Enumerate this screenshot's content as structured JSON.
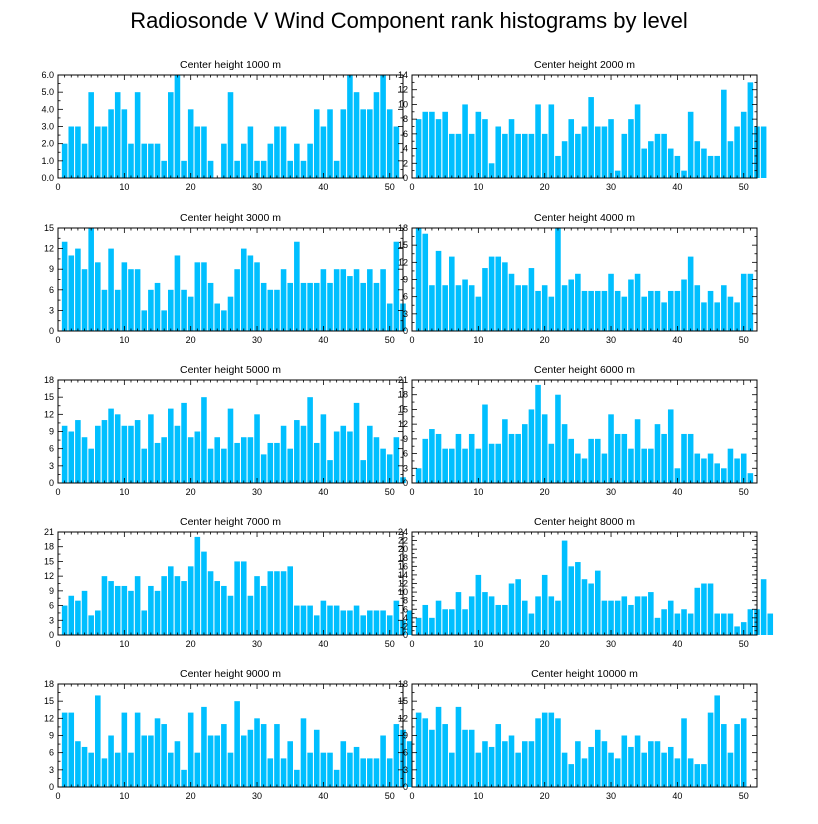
{
  "title": "Radiosonde V Wind Component rank histograms by level",
  "bar_color": "#00BFFF",
  "chart_data": [
    {
      "type": "bar",
      "title": "Center height 1000 m",
      "x_start": 1,
      "xlim": [
        0,
        52
      ],
      "ylim": [
        0,
        6
      ],
      "xticks": [
        0,
        10,
        20,
        30,
        40,
        50
      ],
      "yticks": [
        "0.0",
        "1.0",
        "2.0",
        "3.0",
        "4.0",
        "5.0",
        "6.0"
      ],
      "values": [
        2,
        3,
        3,
        2,
        5,
        3,
        3,
        4,
        5,
        4,
        2,
        5,
        2,
        2,
        2,
        1,
        5,
        6,
        1,
        4,
        3,
        3,
        1,
        0,
        2,
        5,
        1,
        2,
        3,
        1,
        1,
        2,
        3,
        3,
        1,
        2,
        1,
        2,
        4,
        3,
        4,
        1,
        4,
        6,
        5,
        4,
        4,
        5,
        6,
        4,
        3
      ]
    },
    {
      "type": "bar",
      "title": "Center height 2000 m",
      "x_start": 1,
      "xlim": [
        0,
        52
      ],
      "ylim": [
        0,
        14
      ],
      "xticks": [
        0,
        10,
        20,
        30,
        40,
        50
      ],
      "yticks": [
        "0",
        "2",
        "4",
        "6",
        "8",
        "10",
        "12",
        "14"
      ],
      "values": [
        8,
        9,
        9,
        8,
        9,
        6,
        6,
        10,
        6,
        9,
        8,
        2,
        7,
        6,
        8,
        6,
        6,
        6,
        10,
        6,
        10,
        3,
        5,
        8,
        6,
        7,
        11,
        7,
        7,
        8,
        1,
        6,
        8,
        10,
        4,
        5,
        6,
        6,
        4,
        3,
        1,
        9,
        5,
        4,
        3,
        3,
        12,
        5,
        7,
        9,
        13,
        7,
        7
      ]
    },
    {
      "type": "bar",
      "title": "Center height 3000 m",
      "x_start": 1,
      "xlim": [
        0,
        52
      ],
      "ylim": [
        0,
        15
      ],
      "xticks": [
        0,
        10,
        20,
        30,
        40,
        50
      ],
      "yticks": [
        "0",
        "3",
        "6",
        "9",
        "12",
        "15"
      ],
      "values": [
        13,
        11,
        12,
        9,
        15,
        10,
        6,
        12,
        6,
        10,
        9,
        9,
        3,
        6,
        7,
        3,
        6,
        11,
        6,
        5,
        10,
        10,
        7,
        4,
        3,
        5,
        9,
        12,
        11,
        10,
        7,
        6,
        6,
        9,
        7,
        13,
        7,
        7,
        7,
        9,
        7,
        9,
        9,
        8,
        9,
        7,
        9,
        7,
        9,
        4,
        13,
        4
      ]
    },
    {
      "type": "bar",
      "title": "Center height 4000 m",
      "x_start": 1,
      "xlim": [
        0,
        52
      ],
      "ylim": [
        0,
        18
      ],
      "xticks": [
        0,
        10,
        20,
        30,
        40,
        50
      ],
      "yticks": [
        "0",
        "3",
        "6",
        "9",
        "12",
        "15",
        "18"
      ],
      "values": [
        18,
        17,
        8,
        14,
        8,
        13,
        8,
        9,
        8,
        6,
        11,
        13,
        13,
        12,
        10,
        8,
        8,
        11,
        7,
        8,
        6,
        18,
        8,
        9,
        10,
        7,
        7,
        7,
        7,
        10,
        7,
        6,
        9,
        10,
        6,
        7,
        7,
        5,
        7,
        7,
        9,
        13,
        8,
        5,
        7,
        5,
        8,
        6,
        5,
        10,
        10
      ]
    },
    {
      "type": "bar",
      "title": "Center height 5000 m",
      "x_start": 1,
      "xlim": [
        0,
        52
      ],
      "ylim": [
        0,
        18
      ],
      "xticks": [
        0,
        10,
        20,
        30,
        40,
        50
      ],
      "yticks": [
        "0",
        "3",
        "6",
        "9",
        "12",
        "15",
        "18"
      ],
      "values": [
        10,
        9,
        11,
        8,
        6,
        10,
        11,
        13,
        12,
        10,
        10,
        11,
        6,
        12,
        7,
        8,
        13,
        10,
        14,
        8,
        9,
        15,
        6,
        8,
        6,
        13,
        7,
        8,
        8,
        12,
        5,
        7,
        7,
        10,
        6,
        11,
        10,
        15,
        7,
        12,
        4,
        9,
        10,
        9,
        14,
        4,
        10,
        8,
        6,
        5,
        8,
        1
      ]
    },
    {
      "type": "bar",
      "title": "Center height 6000 m",
      "x_start": 1,
      "xlim": [
        0,
        52
      ],
      "ylim": [
        0,
        21
      ],
      "xticks": [
        0,
        10,
        20,
        30,
        40,
        50
      ],
      "yticks": [
        "0",
        "3",
        "6",
        "9",
        "12",
        "15",
        "18",
        "21"
      ],
      "values": [
        3,
        9,
        11,
        10,
        7,
        7,
        10,
        7,
        10,
        7,
        16,
        8,
        8,
        13,
        10,
        10,
        12,
        15,
        20,
        14,
        8,
        18,
        12,
        9,
        6,
        5,
        9,
        9,
        6,
        14,
        10,
        10,
        7,
        13,
        7,
        7,
        12,
        10,
        15,
        3,
        10,
        10,
        6,
        5,
        6,
        4,
        3,
        7,
        5,
        6,
        2
      ]
    },
    {
      "type": "bar",
      "title": "Center height 7000 m",
      "x_start": 1,
      "xlim": [
        0,
        52
      ],
      "ylim": [
        0,
        21
      ],
      "xticks": [
        0,
        10,
        20,
        30,
        40,
        50
      ],
      "yticks": [
        "0",
        "3",
        "6",
        "9",
        "12",
        "15",
        "18",
        "21"
      ],
      "values": [
        6,
        8,
        7,
        9,
        4,
        5,
        12,
        11,
        10,
        10,
        9,
        12,
        5,
        10,
        9,
        12,
        14,
        12,
        11,
        14,
        20,
        17,
        13,
        11,
        10,
        8,
        15,
        15,
        8,
        12,
        10,
        13,
        13,
        13,
        14,
        6,
        6,
        6,
        4,
        7,
        6,
        6,
        5,
        5,
        6,
        4,
        5,
        5,
        5,
        4,
        7,
        3,
        5
      ]
    },
    {
      "type": "bar",
      "title": "Center height 8000 m",
      "x_start": 1,
      "xlim": [
        0,
        52
      ],
      "ylim": [
        0,
        24
      ],
      "xticks": [
        0,
        10,
        20,
        30,
        40,
        50
      ],
      "yticks": [
        "0",
        "2",
        "4",
        "6",
        "8",
        "10",
        "12",
        "14",
        "16",
        "18",
        "20",
        "22",
        "24"
      ],
      "values": [
        4,
        7,
        4,
        8,
        6,
        6,
        10,
        6,
        9,
        14,
        10,
        9,
        7,
        7,
        12,
        13,
        8,
        5,
        9,
        14,
        9,
        8,
        22,
        16,
        17,
        13,
        12,
        15,
        8,
        8,
        8,
        9,
        7,
        9,
        9,
        10,
        4,
        6,
        8,
        5,
        6,
        5,
        11,
        12,
        12,
        5,
        5,
        5,
        2,
        3,
        6,
        6,
        13,
        5
      ]
    },
    {
      "type": "bar",
      "title": "Center height 9000 m",
      "x_start": 1,
      "xlim": [
        0,
        52
      ],
      "ylim": [
        0,
        18
      ],
      "xticks": [
        0,
        10,
        20,
        30,
        40,
        50
      ],
      "yticks": [
        "0",
        "3",
        "6",
        "9",
        "12",
        "15",
        "18"
      ],
      "values": [
        13,
        13,
        8,
        7,
        6,
        16,
        5,
        9,
        6,
        13,
        6,
        13,
        9,
        9,
        12,
        11,
        6,
        8,
        3,
        13,
        6,
        14,
        9,
        9,
        11,
        6,
        15,
        9,
        10,
        12,
        11,
        5,
        11,
        5,
        8,
        3,
        12,
        6,
        10,
        6,
        6,
        3,
        8,
        6,
        7,
        5,
        5,
        5,
        9,
        5,
        11,
        10,
        8
      ]
    },
    {
      "type": "bar",
      "title": "Center height 10000 m",
      "x_start": 1,
      "xlim": [
        0,
        52
      ],
      "ylim": [
        0,
        18
      ],
      "xticks": [
        0,
        10,
        20,
        30,
        40,
        50
      ],
      "yticks": [
        "0",
        "3",
        "6",
        "9",
        "12",
        "15",
        "18"
      ],
      "values": [
        13,
        12,
        10,
        14,
        11,
        6,
        14,
        10,
        10,
        6,
        8,
        7,
        11,
        8,
        9,
        6,
        8,
        8,
        12,
        13,
        13,
        12,
        6,
        4,
        8,
        5,
        7,
        10,
        8,
        6,
        5,
        9,
        7,
        9,
        6,
        8,
        8,
        6,
        7,
        5,
        12,
        5,
        4,
        4,
        13,
        16,
        11,
        6,
        11,
        12
      ]
    }
  ]
}
